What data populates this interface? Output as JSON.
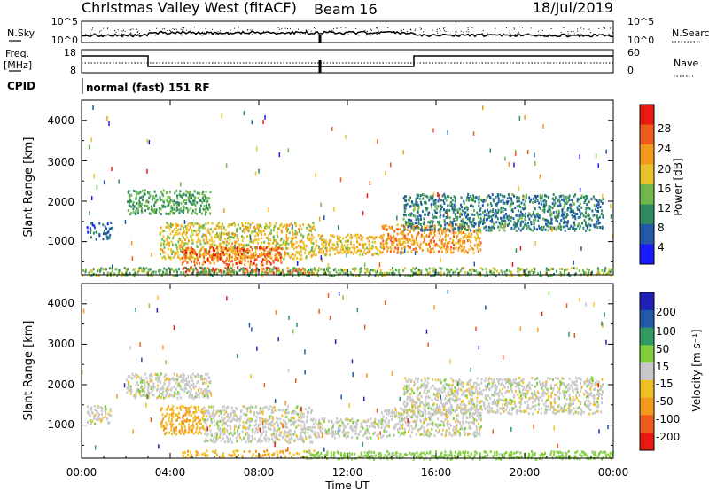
{
  "header": {
    "title": "Christmas Valley West (fitACF)",
    "beam": "Beam 16",
    "date": "18/Jul/2019"
  },
  "sky_panel": {
    "left_label": "N.Sky",
    "right_label": "N.Search",
    "left_ticks": [
      "10^5",
      "10^0"
    ],
    "right_ticks": [
      "10^5",
      "10^0"
    ]
  },
  "freq_panel": {
    "left_label_line1": "Freq.",
    "left_label_line2": "[MHz]",
    "right_label": "Nave",
    "left_ticks": [
      "18",
      "8"
    ],
    "right_ticks": [
      "60",
      "0"
    ]
  },
  "cpid": {
    "label": "CPID",
    "mode_text": "normal (fast) 151 RF"
  },
  "x_axis": {
    "label": "Time UT",
    "ticks": [
      "00:00",
      "04:00",
      "08:00",
      "12:00",
      "16:00",
      "20:00",
      "00:00"
    ]
  },
  "power_panel": {
    "ylabel": "Slant Range [km]",
    "yticks": [
      "4000",
      "3000",
      "2000",
      "1000"
    ],
    "colorbar_label": "Power [dB]",
    "colorbar_ticks": [
      "28",
      "24",
      "20",
      "16",
      "12",
      "8",
      "4"
    ]
  },
  "velocity_panel": {
    "ylabel": "Slant Range [km]",
    "yticks": [
      "4000",
      "3000",
      "2000",
      "1000"
    ],
    "colorbar_label": "Velocity [m s⁻¹]",
    "colorbar_ticks": [
      "200",
      "100",
      "50",
      "15",
      "-15",
      "-50",
      "-100",
      "-200"
    ]
  },
  "chart_data": [
    {
      "type": "line",
      "panel": "sky_noise",
      "x_range_hours": [
        0,
        24
      ],
      "y_scale": "log",
      "y_range": [
        1,
        100000
      ]
    },
    {
      "type": "line",
      "panel": "frequency_and_nave",
      "x_range_hours": [
        0,
        24
      ],
      "frequency_mhz": [
        {
          "start_h": 0,
          "end_h": 3.0,
          "value": 16
        },
        {
          "start_h": 3.0,
          "end_h": 15.0,
          "value": 10
        },
        {
          "start_h": 15.0,
          "end_h": 24,
          "value": 16
        }
      ],
      "nave_approx": 22,
      "y_range_freq": [
        8,
        18
      ],
      "y_range_nave": [
        0,
        60
      ]
    },
    {
      "type": "heatmap",
      "panel": "power",
      "x_label": "Time UT",
      "y_label": "Slant Range [km]",
      "x_range_hours": [
        0,
        24
      ],
      "y_range_km": [
        180,
        4500
      ],
      "color_scale_db": [
        0,
        30
      ],
      "color_stops": [
        {
          "value": 2,
          "color": "#1a1aff"
        },
        {
          "value": 6,
          "color": "#205aa8"
        },
        {
          "value": 10,
          "color": "#2f8a62"
        },
        {
          "value": 14,
          "color": "#6fb84a"
        },
        {
          "value": 18,
          "color": "#e8c42a"
        },
        {
          "value": 22,
          "color": "#f39a1c"
        },
        {
          "value": 26,
          "color": "#f05a1a"
        },
        {
          "value": 29,
          "color": "#e81a12"
        }
      ],
      "scatter_regions": [
        {
          "t0": 0.2,
          "t1": 1.3,
          "r0": 1050,
          "r1": 1500,
          "db": 6
        },
        {
          "t0": 2.0,
          "t1": 5.8,
          "r0": 1700,
          "r1": 2300,
          "db": 12
        },
        {
          "t0": 3.5,
          "t1": 10.5,
          "r0": 600,
          "r1": 1500,
          "db": 18
        },
        {
          "t0": 4.5,
          "t1": 9.0,
          "r0": 450,
          "r1": 900,
          "db": 25
        },
        {
          "t0": 4.5,
          "t1": 10.5,
          "r0": 230,
          "r1": 400,
          "db": 27
        },
        {
          "t0": 10.5,
          "t1": 13.5,
          "r0": 700,
          "r1": 1200,
          "db": 19
        },
        {
          "t0": 13.5,
          "t1": 18.0,
          "r0": 750,
          "r1": 1450,
          "db": 22
        },
        {
          "t0": 14.5,
          "t1": 23.5,
          "r0": 1300,
          "r1": 2200,
          "db": 9
        },
        {
          "t0": 0.0,
          "t1": 24.0,
          "r0": 180,
          "r1": 380,
          "db": 14
        }
      ]
    },
    {
      "type": "heatmap",
      "panel": "velocity",
      "x_label": "Time UT",
      "y_label": "Slant Range [km]",
      "x_range_hours": [
        0,
        24
      ],
      "y_range_km": [
        180,
        4500
      ],
      "color_scale_ms": [
        -250,
        250
      ],
      "color_stops": [
        {
          "value": 225,
          "color": "#2020b8"
        },
        {
          "value": 150,
          "color": "#205aa8"
        },
        {
          "value": 75,
          "color": "#2f9a62"
        },
        {
          "value": 30,
          "color": "#7fce3a"
        },
        {
          "value": 0,
          "color": "#c8c8c8"
        },
        {
          "value": -30,
          "color": "#f0c020"
        },
        {
          "value": -75,
          "color": "#f39a1c"
        },
        {
          "value": -150,
          "color": "#f05a1a"
        },
        {
          "value": -225,
          "color": "#e81a12"
        }
      ],
      "scatter_regions": [
        {
          "t0": 0.2,
          "t1": 1.3,
          "r0": 1050,
          "r1": 1500,
          "vel": 0
        },
        {
          "t0": 2.0,
          "t1": 5.8,
          "r0": 1700,
          "r1": 2300,
          "vel": 0
        },
        {
          "t0": 3.5,
          "t1": 5.5,
          "r0": 800,
          "r1": 1500,
          "vel": -50
        },
        {
          "t0": 5.5,
          "t1": 10.5,
          "r0": 600,
          "r1": 1500,
          "vel": 0
        },
        {
          "t0": 4.5,
          "t1": 10.5,
          "r0": 230,
          "r1": 400,
          "vel": -50
        },
        {
          "t0": 10.5,
          "t1": 13.5,
          "r0": 700,
          "r1": 1200,
          "vel": 0
        },
        {
          "t0": 13.5,
          "t1": 18.0,
          "r0": 750,
          "r1": 1450,
          "vel": 0
        },
        {
          "t0": 14.5,
          "t1": 23.5,
          "r0": 1300,
          "r1": 2200,
          "vel": 0
        },
        {
          "t0": 10.0,
          "t1": 24.0,
          "r0": 180,
          "r1": 380,
          "vel": 30
        }
      ]
    }
  ]
}
